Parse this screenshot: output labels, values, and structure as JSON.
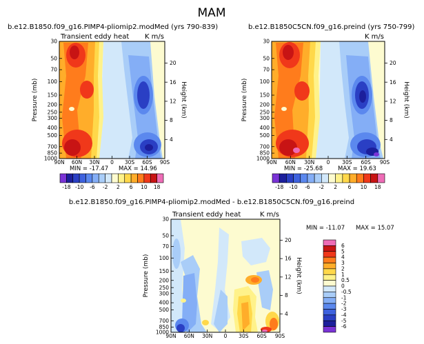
{
  "figure_title": "MAM",
  "chart_data": [
    {
      "type": "heatmap",
      "panel_id": "left",
      "title": "b.e12.B1850.f09_g16.PIMP4-pliomip2.modMed (yrs 790-839)",
      "left_string": "Transient eddy heat",
      "right_string": "K m/s",
      "xlabel": "",
      "ylabel": "Pressure (mb)",
      "y2label": "Height (km)",
      "x_ticks": [
        "90N",
        "60N",
        "30N",
        "0",
        "30S",
        "60S",
        "90S"
      ],
      "y_ticks": [
        "30",
        "50",
        "70",
        "100",
        "150",
        "200",
        "250",
        "300",
        "400",
        "500",
        "700",
        "850",
        "1000"
      ],
      "height_ticks": [
        "20",
        "16",
        "12",
        "8",
        "4"
      ],
      "min_label": "MIN = -17.47",
      "max_label": "MAX = 14.96",
      "min": -17.47,
      "max": 14.96,
      "colorbar_orientation": "horizontal",
      "colorbar_labels": [
        "-18",
        "-10",
        "-6",
        "-2",
        "2",
        "6",
        "10",
        "18"
      ],
      "levels": [
        -18,
        -14,
        -10,
        -8,
        -6,
        -4,
        -2,
        -1,
        1,
        2,
        4,
        6,
        8,
        10,
        14,
        18
      ]
    },
    {
      "type": "heatmap",
      "panel_id": "right",
      "title": "b.e12.B1850C5CN.f09_g16.preind (yrs 750-799)",
      "left_string": "",
      "right_string": "K m/s",
      "xlabel": "",
      "ylabel": "Pressure (mb)",
      "y2label": "Height (km)",
      "x_ticks": [
        "90N",
        "60N",
        "30N",
        "0",
        "30S",
        "60S",
        "90S"
      ],
      "y_ticks": [
        "30",
        "50",
        "70",
        "100",
        "150",
        "200",
        "250",
        "300",
        "400",
        "500",
        "700",
        "850",
        "1000"
      ],
      "height_ticks": [
        "20",
        "16",
        "12",
        "8",
        "4"
      ],
      "min_label": "MIN = -25.68",
      "max_label": "MAX = 19.63",
      "min": -25.68,
      "max": 19.63,
      "colorbar_orientation": "horizontal",
      "colorbar_labels": [
        "-18",
        "-10",
        "-6",
        "-2",
        "2",
        "6",
        "10",
        "18"
      ],
      "levels": [
        -18,
        -14,
        -10,
        -8,
        -6,
        -4,
        -2,
        -1,
        1,
        2,
        4,
        6,
        8,
        10,
        14,
        18
      ]
    },
    {
      "type": "heatmap",
      "panel_id": "diff",
      "title": "b.e12.B1850.f09_g16.PIMP4-pliomip2.modMed - b.e12.B1850C5CN.f09_g16.preind",
      "left_string": "Transient eddy heat",
      "right_string": "K m/s",
      "xlabel": "",
      "ylabel": "Pressure (mb)",
      "y2label": "Height (km)",
      "x_ticks": [
        "90N",
        "60N",
        "30N",
        "0",
        "30S",
        "60S",
        "90S"
      ],
      "y_ticks": [
        "30",
        "50",
        "70",
        "100",
        "150",
        "200",
        "250",
        "300",
        "400",
        "500",
        "700",
        "850",
        "1000"
      ],
      "height_ticks": [
        "20",
        "16",
        "12",
        "8",
        "4"
      ],
      "min_label": "MIN = -11.07",
      "max_label": "MAX = 15.07",
      "min": -11.07,
      "max": 15.07,
      "colorbar_orientation": "vertical",
      "colorbar_labels": [
        "6",
        "5",
        "4",
        "3",
        "2",
        "1",
        "0.5",
        "0",
        "-0.5",
        "-1",
        "-2",
        "-3",
        "-4",
        "-5",
        "-6"
      ],
      "levels": [
        -6,
        -5,
        -4,
        -3,
        -2,
        -1,
        -0.5,
        0,
        0.5,
        1,
        2,
        3,
        4,
        5,
        6
      ]
    }
  ],
  "colors": {
    "palette16": [
      "#7a33d6",
      "#1c1f9c",
      "#2a3fc4",
      "#3e62de",
      "#5b88ee",
      "#84aef6",
      "#a9cdf8",
      "#d2e8fa",
      "#fdfbd0",
      "#fff28a",
      "#ffd84a",
      "#ffad2a",
      "#ff7c1c",
      "#f0381a",
      "#c81414",
      "#ee6cb6"
    ],
    "palette16_diff": [
      "#7a33d6",
      "#1c1f9c",
      "#2a3fc4",
      "#3e62de",
      "#5b88ee",
      "#84aef6",
      "#a9cdf8",
      "#d2e8fa",
      "#fdfbd0",
      "#fff28a",
      "#ffd84a",
      "#ffad2a",
      "#ff7c1c",
      "#f0381a",
      "#c81414",
      "#ee6cb6"
    ]
  }
}
